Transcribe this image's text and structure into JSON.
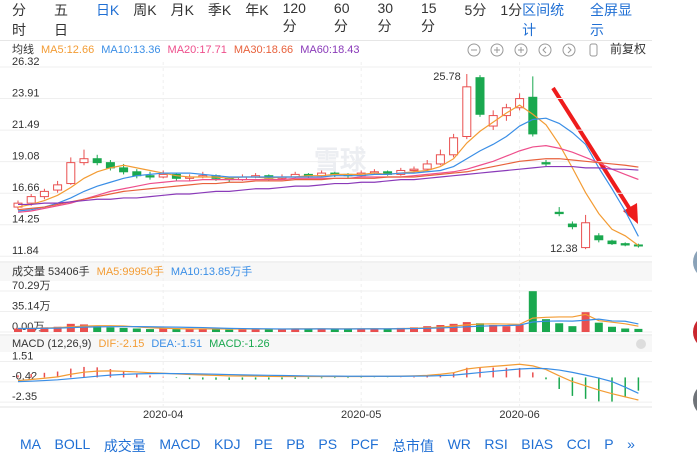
{
  "tabs": [
    "分时",
    "五日",
    "日K",
    "周K",
    "月K",
    "季K",
    "年K",
    "120分",
    "60分",
    "30分",
    "15分",
    "5分",
    "1分"
  ],
  "active_tab": 2,
  "toolbar_right": [
    "区间统计",
    "全屏显示"
  ],
  "adjust": "前复权",
  "watermark": "雪球",
  "bottom_tabs": [
    "MA",
    "BOLL",
    "成交量",
    "MACD",
    "KDJ",
    "PE",
    "PB",
    "PS",
    "PCF",
    "总市值",
    "WR",
    "RSI",
    "BIAS",
    "CCI",
    "P",
    "»"
  ],
  "chart_data": {
    "type": "candlestick",
    "categories": [
      null,
      null,
      null,
      null,
      null,
      null,
      null,
      null,
      null,
      null,
      null,
      "2020-04",
      null,
      null,
      null,
      null,
      null,
      null,
      null,
      null,
      null,
      null,
      null,
      null,
      null,
      null,
      "2020-05",
      null,
      null,
      null,
      null,
      null,
      null,
      null,
      null,
      null,
      null,
      null,
      "2020-06",
      null,
      null,
      null,
      null,
      null,
      null,
      null,
      null,
      null
    ],
    "ylim": [
      11.55,
      26.7
    ],
    "yticks": [
      11.84,
      14.25,
      16.66,
      19.08,
      21.49,
      23.91,
      26.32
    ],
    "up_color": "#e94f4f",
    "down_color": "#1aa84f",
    "candles": {
      "open": [
        15.6,
        15.9,
        16.4,
        16.9,
        17.4,
        19.0,
        19.3,
        19.0,
        18.6,
        18.3,
        18.0,
        17.9,
        18.1,
        17.8,
        17.9,
        18.0,
        17.8,
        17.7,
        17.9,
        18.0,
        17.8,
        17.9,
        18.1,
        18.0,
        18.2,
        18.1,
        18.0,
        18.2,
        18.3,
        18.1,
        18.4,
        18.5,
        18.9,
        19.6,
        21.0,
        25.5,
        21.8,
        22.6,
        23.2,
        24.0,
        19.0,
        15.2,
        14.3,
        12.5,
        13.4,
        13.0,
        12.8,
        12.7
      ],
      "high": [
        16.1,
        16.6,
        17.0,
        17.6,
        19.4,
        20.0,
        19.6,
        19.2,
        18.9,
        18.5,
        18.3,
        18.4,
        18.2,
        18.1,
        18.3,
        18.1,
        17.9,
        18.1,
        18.2,
        18.1,
        18.1,
        18.3,
        18.2,
        18.4,
        18.3,
        18.2,
        18.4,
        18.5,
        18.4,
        18.6,
        18.7,
        19.2,
        20.0,
        21.2,
        25.78,
        25.7,
        23.0,
        23.5,
        24.3,
        25.6,
        19.2,
        15.6,
        14.5,
        15.0,
        13.6,
        13.1,
        12.9,
        12.8
      ],
      "low": [
        15.4,
        15.7,
        16.2,
        16.7,
        17.3,
        18.8,
        18.8,
        18.4,
        18.1,
        17.8,
        17.7,
        17.8,
        17.6,
        17.6,
        17.8,
        17.6,
        17.5,
        17.6,
        17.8,
        17.6,
        17.7,
        17.8,
        17.8,
        17.9,
        17.9,
        17.8,
        17.9,
        18.1,
        18.0,
        18.0,
        18.2,
        18.4,
        18.8,
        19.4,
        20.8,
        22.5,
        21.5,
        22.2,
        23.0,
        21.0,
        18.7,
        14.9,
        13.9,
        12.38,
        12.9,
        12.7,
        12.6,
        12.5
      ],
      "close": [
        15.9,
        16.4,
        16.8,
        17.3,
        19.0,
        19.3,
        19.0,
        18.6,
        18.3,
        18.0,
        17.9,
        18.1,
        17.8,
        17.9,
        18.0,
        17.8,
        17.7,
        17.9,
        18.0,
        17.8,
        17.9,
        18.1,
        18.0,
        18.2,
        18.1,
        18.0,
        18.2,
        18.3,
        18.1,
        18.4,
        18.5,
        18.9,
        19.6,
        20.9,
        24.8,
        22.7,
        22.6,
        23.2,
        23.9,
        21.2,
        18.9,
        15.1,
        14.1,
        14.4,
        13.1,
        12.8,
        12.7,
        12.66
      ]
    },
    "high_label": 25.78,
    "low_label": 12.38,
    "ma_label": "均线",
    "ma": [
      {
        "label": "MA5:12.66",
        "color": "#f39c34",
        "values": [
          15.6,
          15.8,
          16.1,
          16.5,
          17.1,
          17.8,
          18.3,
          18.6,
          18.8,
          18.6,
          18.4,
          18.2,
          18.0,
          17.9,
          17.9,
          17.9,
          17.8,
          17.9,
          17.9,
          17.8,
          17.9,
          17.9,
          18.0,
          18.0,
          18.1,
          18.1,
          18.1,
          18.2,
          18.1,
          18.2,
          18.3,
          18.4,
          18.7,
          19.3,
          20.5,
          21.4,
          22.1,
          22.8,
          23.4,
          22.7,
          21.9,
          20.4,
          18.6,
          16.7,
          15.1,
          13.9,
          13.4,
          12.66
        ]
      },
      {
        "label": "MA10:13.36",
        "color": "#3a8ee6",
        "values": [
          15.3,
          15.4,
          15.6,
          15.9,
          16.3,
          16.8,
          17.2,
          17.5,
          17.8,
          18.0,
          18.1,
          18.2,
          18.2,
          18.2,
          18.1,
          18.0,
          17.9,
          17.9,
          17.9,
          17.9,
          17.9,
          17.9,
          17.9,
          17.9,
          18.0,
          18.0,
          18.0,
          18.1,
          18.1,
          18.2,
          18.2,
          18.3,
          18.4,
          18.7,
          19.3,
          19.9,
          20.4,
          21.0,
          21.8,
          22.3,
          22.4,
          22.0,
          21.3,
          20.4,
          18.6,
          17.0,
          15.3,
          13.36
        ]
      },
      {
        "label": "MA20:17.71",
        "color": "#ee4f8c",
        "values": [
          15.2,
          15.3,
          15.5,
          15.7,
          15.9,
          16.2,
          16.5,
          16.8,
          17.0,
          17.2,
          17.4,
          17.5,
          17.6,
          17.6,
          17.7,
          17.7,
          17.7,
          17.7,
          17.7,
          17.7,
          17.7,
          17.8,
          17.8,
          17.8,
          17.8,
          17.8,
          17.9,
          17.9,
          17.9,
          17.9,
          18.0,
          18.1,
          18.2,
          18.3,
          18.5,
          18.8,
          19.1,
          19.5,
          19.9,
          20.2,
          20.3,
          20.1,
          19.8,
          19.4,
          19.0,
          18.5,
          18.1,
          17.71
        ]
      },
      {
        "label": "MA30:18.66",
        "color": "#e8613c",
        "values": [
          15.4,
          15.5,
          15.6,
          15.8,
          16.0,
          16.2,
          16.4,
          16.6,
          16.8,
          16.9,
          17.0,
          17.1,
          17.2,
          17.3,
          17.4,
          17.4,
          17.5,
          17.5,
          17.6,
          17.6,
          17.6,
          17.7,
          17.7,
          17.7,
          17.8,
          17.8,
          17.8,
          17.8,
          17.9,
          17.9,
          17.9,
          18.0,
          18.1,
          18.2,
          18.3,
          18.5,
          18.7,
          18.9,
          19.1,
          19.2,
          19.3,
          19.3,
          19.2,
          19.1,
          19.0,
          18.9,
          18.8,
          18.66
        ]
      },
      {
        "label": "MA60:18.43",
        "color": "#8a3ab9",
        "values": [
          15.8,
          15.8,
          15.9,
          15.9,
          16.0,
          16.1,
          16.2,
          16.2,
          16.3,
          16.3,
          16.4,
          16.5,
          16.6,
          16.6,
          16.7,
          16.8,
          16.8,
          16.9,
          17.0,
          17.0,
          17.1,
          17.2,
          17.2,
          17.3,
          17.4,
          17.4,
          17.5,
          17.5,
          17.6,
          17.7,
          17.7,
          17.8,
          17.9,
          18.0,
          18.1,
          18.2,
          18.3,
          18.4,
          18.5,
          18.6,
          18.7,
          18.7,
          18.7,
          18.6,
          18.6,
          18.5,
          18.5,
          18.43
        ]
      }
    ],
    "volume": {
      "legend": [
        "成交量 53406手",
        "MA5:99950手",
        "MA10:13.85万手"
      ],
      "ylim": [
        0,
        80.6
      ],
      "yticks": [
        {
          "value": 0,
          "label": "0.00万"
        },
        {
          "value": 35.14,
          "label": "35.14万"
        },
        {
          "value": 70.29,
          "label": "70.29万"
        }
      ],
      "values": [
        6,
        7,
        8,
        9,
        14,
        13,
        10,
        8,
        7,
        6,
        5,
        6,
        5,
        5,
        6,
        5,
        4,
        5,
        6,
        5,
        5,
        6,
        5,
        6,
        5,
        5,
        6,
        6,
        5,
        7,
        8,
        10,
        12,
        14,
        17,
        15,
        12,
        10,
        12,
        70,
        22,
        15,
        10,
        34,
        16,
        9,
        6,
        5.34
      ],
      "ma5": [
        6.0,
        6.3,
        6.7,
        7.5,
        8.8,
        10.2,
        10.8,
        10.8,
        10.4,
        8.8,
        7.2,
        6.4,
        5.8,
        5.4,
        5.4,
        5.4,
        5.0,
        5.0,
        5.2,
        5.0,
        5.0,
        5.4,
        5.4,
        5.4,
        5.4,
        5.4,
        5.4,
        5.6,
        5.4,
        5.8,
        6.4,
        7.2,
        8.4,
        10.2,
        12.2,
        13.6,
        14.0,
        13.6,
        13.2,
        23.8,
        25.2,
        25.8,
        25.8,
        30.2,
        19.4,
        16.8,
        14.0,
        9.995
      ],
      "ma10": [
        6.0,
        6.1,
        6.3,
        6.7,
        7.5,
        8.3,
        8.8,
        9.1,
        9.1,
        9.2,
        9.0,
        8.6,
        8.3,
        7.9,
        7.6,
        6.8,
        6.2,
        5.9,
        5.6,
        5.5,
        5.2,
        5.2,
        5.2,
        5.3,
        5.2,
        5.2,
        5.4,
        5.4,
        5.4,
        5.6,
        5.9,
        6.3,
        7.0,
        7.8,
        9.0,
        10.0,
        10.6,
        11.0,
        11.8,
        17.1,
        18.5,
        19.0,
        18.6,
        20.2,
        22.1,
        19.0,
        18.4,
        13.85
      ]
    },
    "macd": {
      "legend": [
        "MACD (12,26,9)",
        "DIF:-2.15",
        "DEA:-1.51",
        "MACD:-1.26"
      ],
      "ylim": [
        -2.72,
        2.61
      ],
      "yticks": [
        -2.35,
        -0.42,
        1.51
      ],
      "dif": [
        -0.3,
        -0.2,
        -0.08,
        0.05,
        0.3,
        0.5,
        0.6,
        0.62,
        0.58,
        0.52,
        0.45,
        0.4,
        0.33,
        0.27,
        0.23,
        0.19,
        0.15,
        0.13,
        0.12,
        0.1,
        0.09,
        0.09,
        0.08,
        0.09,
        0.09,
        0.08,
        0.09,
        0.1,
        0.1,
        0.12,
        0.15,
        0.2,
        0.3,
        0.45,
        0.8,
        0.95,
        1.05,
        1.15,
        1.25,
        1.1,
        0.75,
        0.15,
        -0.4,
        -0.8,
        -1.2,
        -1.55,
        -1.85,
        -2.15
      ],
      "dea": [
        -0.4,
        -0.36,
        -0.3,
        -0.23,
        -0.12,
        0.0,
        0.12,
        0.22,
        0.29,
        0.34,
        0.36,
        0.37,
        0.36,
        0.35,
        0.33,
        0.3,
        0.27,
        0.24,
        0.22,
        0.2,
        0.18,
        0.16,
        0.14,
        0.13,
        0.12,
        0.11,
        0.11,
        0.11,
        0.11,
        0.11,
        0.12,
        0.13,
        0.17,
        0.22,
        0.34,
        0.46,
        0.58,
        0.69,
        0.8,
        0.86,
        0.84,
        0.7,
        0.48,
        0.22,
        -0.06,
        -0.4,
        -0.93,
        -1.51
      ],
      "hist": [
        0.2,
        0.32,
        0.44,
        0.56,
        0.84,
        1.0,
        0.96,
        0.8,
        0.58,
        0.36,
        0.18,
        0.06,
        -0.06,
        -0.16,
        -0.2,
        -0.22,
        -0.24,
        -0.22,
        -0.2,
        -0.2,
        -0.18,
        -0.14,
        -0.12,
        -0.08,
        -0.06,
        -0.06,
        -0.04,
        -0.02,
        -0.02,
        0.02,
        0.06,
        0.14,
        0.26,
        0.46,
        0.92,
        0.98,
        0.94,
        0.92,
        0.9,
        0.48,
        -0.18,
        -1.1,
        -1.76,
        -2.04,
        -2.28,
        -2.3,
        -1.84,
        -1.26
      ]
    }
  }
}
